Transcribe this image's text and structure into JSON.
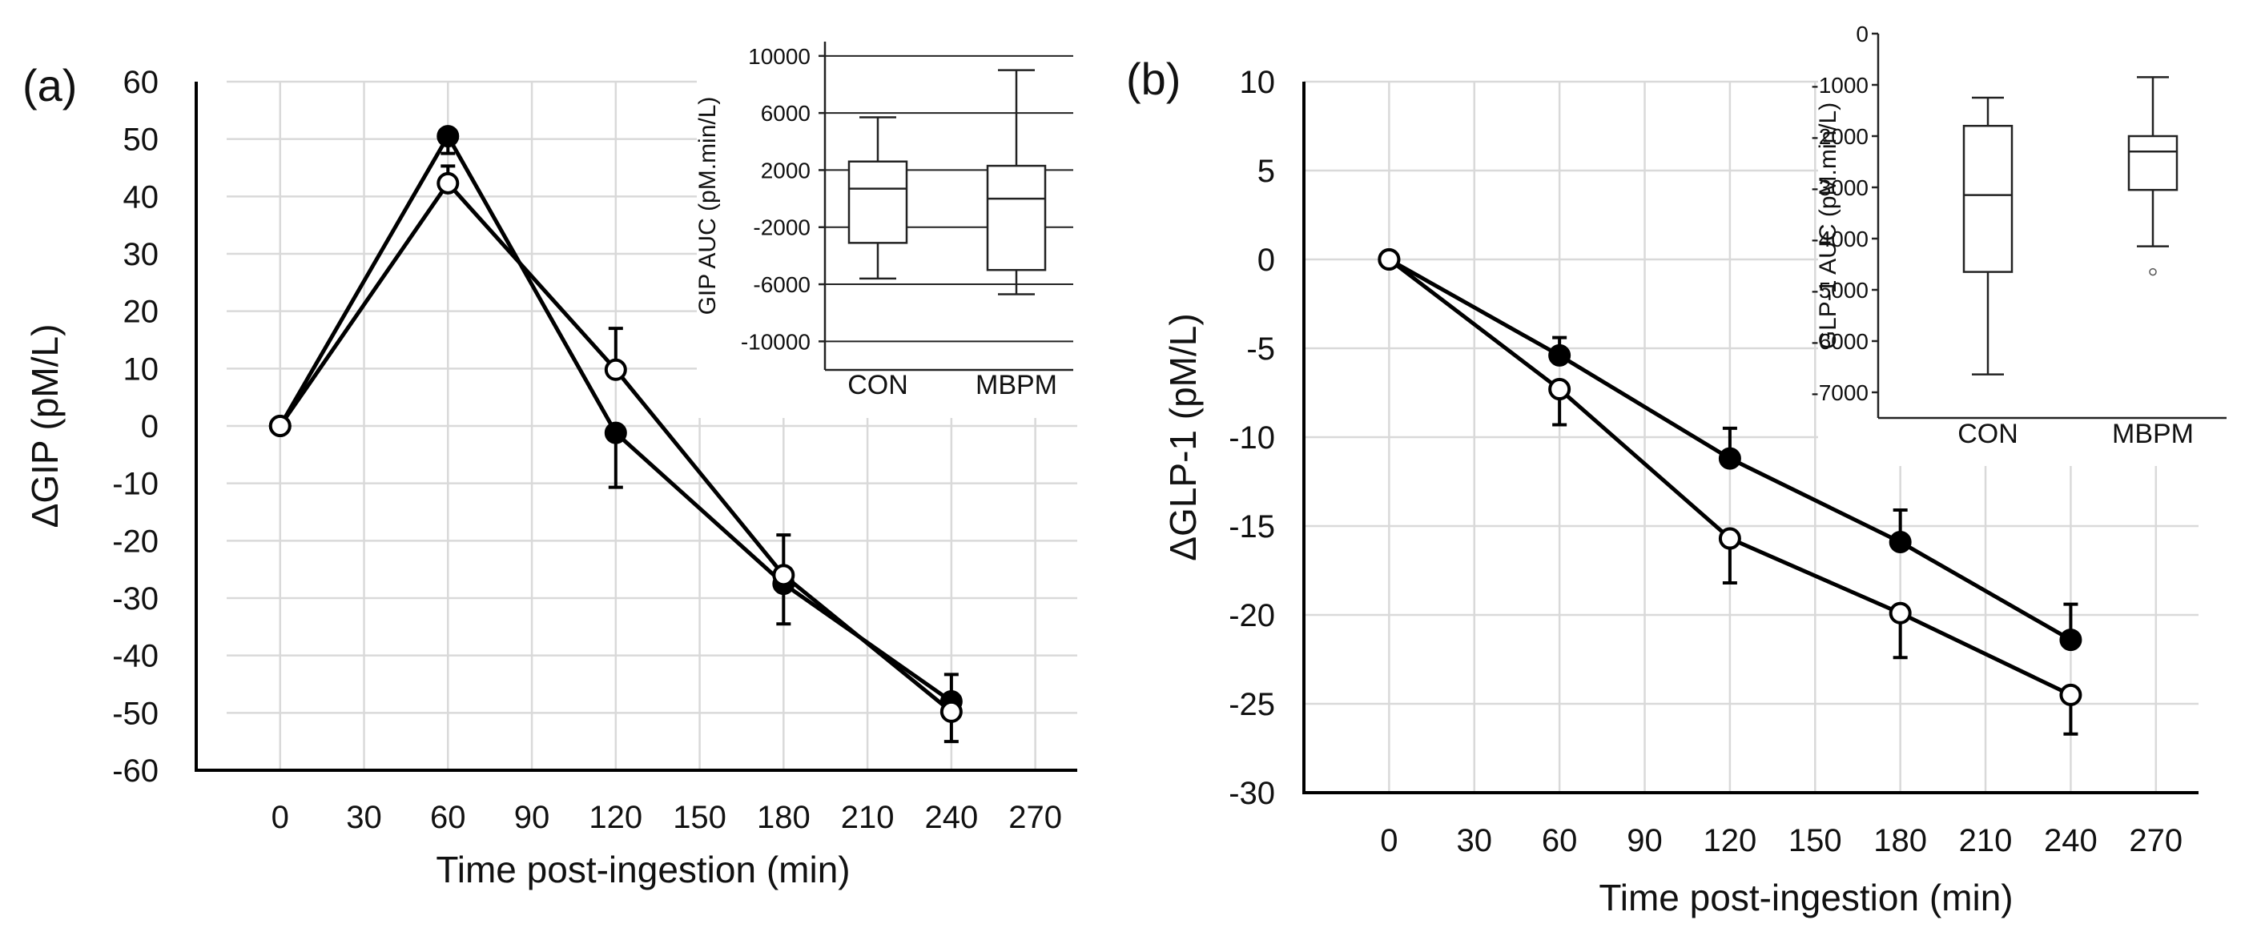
{
  "chart_data": [
    {
      "panel_label": "(a)",
      "type": "line",
      "xlabel": "Time post-ingestion (min)",
      "ylabel": "ΔGIP (pM/L)",
      "xlim": [
        -30,
        285
      ],
      "ylim": [
        -60,
        60
      ],
      "xticks": [
        "0",
        "30",
        "60",
        "90",
        "120",
        "150",
        "180",
        "210",
        "240",
        "270"
      ],
      "yticks": [
        "60",
        "50",
        "40",
        "30",
        "20",
        "10",
        "0",
        "-10",
        "-20",
        "-30",
        "-40",
        "-50",
        "-60"
      ],
      "grid": true,
      "series": [
        {
          "name": "filled",
          "marker": "filled-circle",
          "x": [
            0,
            60,
            120,
            180,
            240
          ],
          "y": [
            0,
            50.5,
            -1.2,
            -27.5,
            -48
          ],
          "err": [
            0,
            3,
            9.5,
            7,
            7
          ]
        },
        {
          "name": "open",
          "marker": "open-circle",
          "x": [
            0,
            60,
            120,
            180,
            240
          ],
          "y": [
            0,
            42.3,
            9.8,
            -26,
            -49.8
          ],
          "err": [
            0,
            3,
            7.2,
            7,
            6.5
          ]
        }
      ],
      "inset": {
        "type": "box",
        "ylabel": "GIP AUC (pM.min/L)",
        "ylim": [
          -12000,
          11000
        ],
        "yticks": [
          "10000",
          "6000",
          "2000",
          "-2000",
          "-6000",
          "-10000"
        ],
        "categories": [
          "CON",
          "MBPM"
        ],
        "boxes": [
          {
            "whisker_low": -5600,
            "q1": -3100,
            "median": 700,
            "q3": 2600,
            "whisker_high": 5700
          },
          {
            "whisker_low": -6700,
            "q1": -5000,
            "median": 0,
            "q3": 2300,
            "whisker_high": 9000
          }
        ]
      }
    },
    {
      "panel_label": "(b)",
      "type": "line",
      "xlabel": "Time post-ingestion (min)",
      "ylabel": "ΔGLP-1 (pM/L)",
      "xlim": [
        -30,
        285
      ],
      "ylim": [
        -30,
        10
      ],
      "xticks": [
        "0",
        "30",
        "60",
        "90",
        "120",
        "150",
        "180",
        "210",
        "240",
        "270"
      ],
      "yticks": [
        "10",
        "5",
        "0",
        "-5",
        "-10",
        "-15",
        "-20",
        "-25",
        "-30"
      ],
      "grid": true,
      "series": [
        {
          "name": "filled",
          "marker": "filled-circle",
          "x": [
            0,
            60,
            120,
            180,
            240
          ],
          "y": [
            0,
            -5.4,
            -11.2,
            -15.9,
            -21.4
          ],
          "err": [
            0,
            1.0,
            1.7,
            1.8,
            2.0
          ]
        },
        {
          "name": "open",
          "marker": "open-circle",
          "x": [
            0,
            60,
            120,
            180,
            240
          ],
          "y": [
            0,
            -7.3,
            -15.7,
            -19.9,
            -24.5
          ],
          "err": [
            0,
            2.0,
            2.5,
            2.5,
            2.2
          ]
        }
      ],
      "inset": {
        "type": "box",
        "ylabel": "GLP-1 AUC (pM.min/L)",
        "ylim": [
          -7500,
          0
        ],
        "yticks": [
          "0",
          "-1000",
          "-2000",
          "-3000",
          "-4000",
          "-5000",
          "-6000",
          "-7000"
        ],
        "categories": [
          "CON",
          "MBPM"
        ],
        "boxes": [
          {
            "whisker_low": -6650,
            "q1": -4650,
            "median": -3150,
            "q3": -1800,
            "whisker_high": -1250,
            "outliers": []
          },
          {
            "whisker_low": -4150,
            "q1": -3050,
            "median": -2300,
            "q3": -2000,
            "whisker_high": -850,
            "outliers": [
              -4650
            ]
          }
        ]
      }
    }
  ]
}
